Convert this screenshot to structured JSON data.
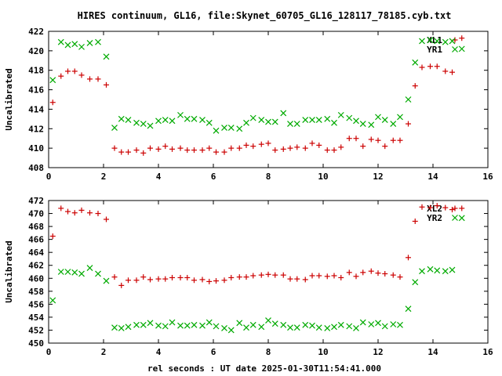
{
  "title": "HIRES continuum, GL16, file:Skynet_60705_GL16_128117_78185.cyb.txt",
  "xlabel": "rel seconds : UT date 2025-01-30T11:54:41.000",
  "colors": {
    "series1": "#cc0000",
    "series2": "#00aa00",
    "frame": "#000000"
  },
  "chart_data": [
    {
      "type": "scatter",
      "ylabel": "Uncalibrated",
      "xlim": [
        0,
        16
      ],
      "ylim": [
        408,
        422
      ],
      "xticks": [
        0,
        2,
        4,
        6,
        8,
        10,
        12,
        14,
        16
      ],
      "yticks": [
        408,
        410,
        412,
        414,
        416,
        418,
        420,
        422
      ],
      "legend_position": "top-right",
      "series": [
        {
          "name": "XL1",
          "marker": "plus",
          "x": [
            0.15,
            0.45,
            0.7,
            0.95,
            1.2,
            1.5,
            1.8,
            2.1,
            2.4,
            2.65,
            2.9,
            3.2,
            3.45,
            3.7,
            4.0,
            4.25,
            4.5,
            4.8,
            5.05,
            5.3,
            5.6,
            5.85,
            6.1,
            6.4,
            6.65,
            6.95,
            7.2,
            7.45,
            7.75,
            8.0,
            8.25,
            8.55,
            8.8,
            9.05,
            9.35,
            9.6,
            9.85,
            10.15,
            10.4,
            10.65,
            10.95,
            11.2,
            11.45,
            11.75,
            12.0,
            12.25,
            12.55,
            12.8,
            13.1,
            13.35,
            13.6,
            13.9,
            14.15,
            14.45,
            14.7,
            15.05
          ],
          "y": [
            414.7,
            417.4,
            417.9,
            417.9,
            417.5,
            417.1,
            417.1,
            416.5,
            410.0,
            409.6,
            409.6,
            409.8,
            409.5,
            410.0,
            409.9,
            410.2,
            409.9,
            410.0,
            409.8,
            409.8,
            409.8,
            410.0,
            409.6,
            409.6,
            410.0,
            410.0,
            410.3,
            410.2,
            410.4,
            410.5,
            409.8,
            409.9,
            410.0,
            410.1,
            410.0,
            410.5,
            410.3,
            409.8,
            409.8,
            410.1,
            411.0,
            411.0,
            410.2,
            410.9,
            410.8,
            410.2,
            410.8,
            410.8,
            412.5,
            416.4,
            418.3,
            418.4,
            418.4,
            417.9,
            417.8,
            421.3
          ]
        },
        {
          "name": "YR1",
          "marker": "cross",
          "x": [
            0.15,
            0.45,
            0.7,
            0.95,
            1.2,
            1.5,
            1.8,
            2.1,
            2.4,
            2.65,
            2.9,
            3.2,
            3.45,
            3.7,
            4.0,
            4.25,
            4.5,
            4.8,
            5.05,
            5.3,
            5.6,
            5.85,
            6.1,
            6.4,
            6.65,
            6.95,
            7.2,
            7.45,
            7.75,
            8.0,
            8.25,
            8.55,
            8.8,
            9.05,
            9.35,
            9.6,
            9.85,
            10.15,
            10.4,
            10.65,
            10.95,
            11.2,
            11.45,
            11.75,
            12.0,
            12.25,
            12.55,
            12.8,
            13.1,
            13.35,
            13.6,
            13.9,
            14.15,
            14.45,
            14.7,
            15.05
          ],
          "y": [
            417.0,
            420.9,
            420.6,
            420.7,
            420.4,
            420.8,
            420.9,
            419.4,
            412.1,
            413.0,
            412.9,
            412.6,
            412.5,
            412.3,
            412.8,
            412.9,
            412.8,
            413.4,
            413.0,
            413.0,
            412.9,
            412.6,
            411.8,
            412.1,
            412.1,
            412.0,
            412.6,
            413.1,
            412.9,
            412.7,
            412.7,
            413.6,
            412.5,
            412.5,
            412.9,
            412.9,
            412.9,
            413.0,
            412.6,
            413.4,
            413.1,
            412.8,
            412.5,
            412.4,
            413.2,
            412.9,
            412.5,
            413.2,
            415.0,
            418.8,
            421.0,
            421.1,
            421.0,
            420.9,
            421.0,
            420.2
          ]
        }
      ]
    },
    {
      "type": "scatter",
      "ylabel": "Uncalibrated",
      "xlim": [
        0,
        16
      ],
      "ylim": [
        450,
        472
      ],
      "xticks": [
        0,
        2,
        4,
        6,
        8,
        10,
        12,
        14,
        16
      ],
      "yticks": [
        450,
        452,
        454,
        456,
        458,
        460,
        462,
        464,
        466,
        468,
        470,
        472
      ],
      "legend_position": "top-right",
      "series": [
        {
          "name": "XL2",
          "marker": "plus",
          "x": [
            0.15,
            0.45,
            0.7,
            0.95,
            1.2,
            1.5,
            1.8,
            2.1,
            2.4,
            2.65,
            2.9,
            3.2,
            3.45,
            3.7,
            4.0,
            4.25,
            4.5,
            4.8,
            5.05,
            5.3,
            5.6,
            5.85,
            6.1,
            6.4,
            6.65,
            6.95,
            7.2,
            7.45,
            7.75,
            8.0,
            8.25,
            8.55,
            8.8,
            9.05,
            9.35,
            9.6,
            9.85,
            10.15,
            10.4,
            10.65,
            10.95,
            11.2,
            11.45,
            11.75,
            12.0,
            12.25,
            12.55,
            12.8,
            13.1,
            13.35,
            13.6,
            13.9,
            14.15,
            14.45,
            14.7,
            15.05
          ],
          "y": [
            466.5,
            470.8,
            470.3,
            470.1,
            470.5,
            470.1,
            470.0,
            469.1,
            460.2,
            458.9,
            459.7,
            459.7,
            460.2,
            459.8,
            459.9,
            459.9,
            460.1,
            460.1,
            460.1,
            459.7,
            459.8,
            459.5,
            459.6,
            459.7,
            460.1,
            460.2,
            460.2,
            460.4,
            460.5,
            460.6,
            460.5,
            460.5,
            459.9,
            459.9,
            459.8,
            460.4,
            460.4,
            460.3,
            460.4,
            460.1,
            460.9,
            460.3,
            460.9,
            461.1,
            460.8,
            460.7,
            460.5,
            460.2,
            463.2,
            468.8,
            471.0,
            470.9,
            471.2,
            470.9,
            470.6,
            470.8
          ]
        },
        {
          "name": "YR2",
          "marker": "cross",
          "x": [
            0.15,
            0.45,
            0.7,
            0.95,
            1.2,
            1.5,
            1.8,
            2.1,
            2.4,
            2.65,
            2.9,
            3.2,
            3.45,
            3.7,
            4.0,
            4.25,
            4.5,
            4.8,
            5.05,
            5.3,
            5.6,
            5.85,
            6.1,
            6.4,
            6.65,
            6.95,
            7.2,
            7.45,
            7.75,
            8.0,
            8.25,
            8.55,
            8.8,
            9.05,
            9.35,
            9.6,
            9.85,
            10.15,
            10.4,
            10.65,
            10.95,
            11.2,
            11.45,
            11.75,
            12.0,
            12.25,
            12.55,
            12.8,
            13.1,
            13.35,
            13.6,
            13.9,
            14.15,
            14.45,
            14.7,
            15.05
          ],
          "y": [
            456.6,
            461.0,
            461.0,
            460.9,
            460.7,
            461.6,
            460.7,
            459.6,
            452.4,
            452.3,
            452.5,
            452.8,
            452.8,
            453.1,
            452.7,
            452.6,
            453.2,
            452.7,
            452.7,
            452.8,
            452.7,
            453.2,
            452.6,
            452.3,
            452.0,
            453.1,
            452.4,
            452.8,
            452.5,
            453.5,
            453.0,
            452.8,
            452.4,
            452.4,
            452.8,
            452.7,
            452.4,
            452.3,
            452.5,
            452.8,
            452.6,
            452.3,
            453.2,
            452.9,
            453.1,
            452.6,
            452.9,
            452.8,
            455.3,
            459.4,
            461.1,
            461.4,
            461.2,
            461.1,
            461.3,
            469.3
          ]
        }
      ]
    }
  ]
}
